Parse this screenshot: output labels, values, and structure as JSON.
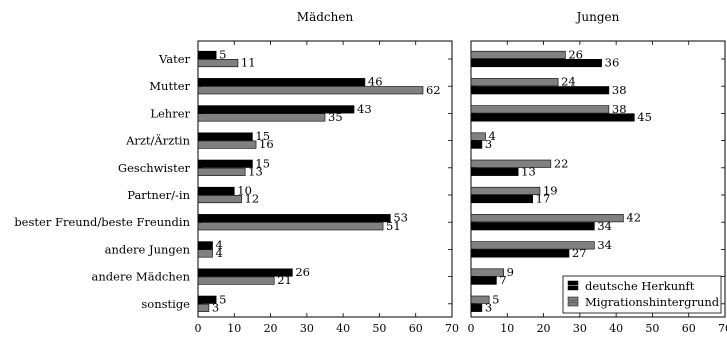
{
  "chart_data": {
    "type": "bar",
    "orientation": "horizontal",
    "categories": [
      "Vater",
      "Mutter",
      "Lehrer",
      "Arzt/Ärztin",
      "Geschwister",
      "Partner/-in",
      "bester Freund/beste Freundin",
      "andere Jungen",
      "andere Mädchen",
      "sonstige"
    ],
    "xlim": [
      0,
      70
    ],
    "xticks": [
      0,
      10,
      20,
      30,
      40,
      50,
      60,
      70
    ],
    "grid": false,
    "colors": {
      "deutsche Herkunft": "#000000",
      "Migrationshintergrund": "#808080"
    },
    "panels": [
      {
        "title": "Mädchen",
        "series": [
          {
            "name": "deutsche Herkunft",
            "values": [
              5,
              46,
              43,
              15,
              15,
              10,
              53,
              4,
              26,
              5
            ]
          },
          {
            "name": "Migrationshintergrund",
            "values": [
              11,
              62,
              35,
              16,
              13,
              12,
              51,
              4,
              21,
              3
            ]
          }
        ]
      },
      {
        "title": "Jungen",
        "series": [
          {
            "name": "deutsche Herkunft",
            "values": [
              36,
              38,
              45,
              3,
              13,
              17,
              34,
              27,
              7,
              3
            ]
          },
          {
            "name": "Migrationshintergrund",
            "values": [
              26,
              24,
              38,
              4,
              22,
              19,
              42,
              34,
              9,
              5
            ]
          }
        ]
      }
    ],
    "legend": {
      "placement": "bottom-right",
      "entries": [
        "deutsche Herkunft",
        "Migrationshintergrund"
      ]
    }
  }
}
